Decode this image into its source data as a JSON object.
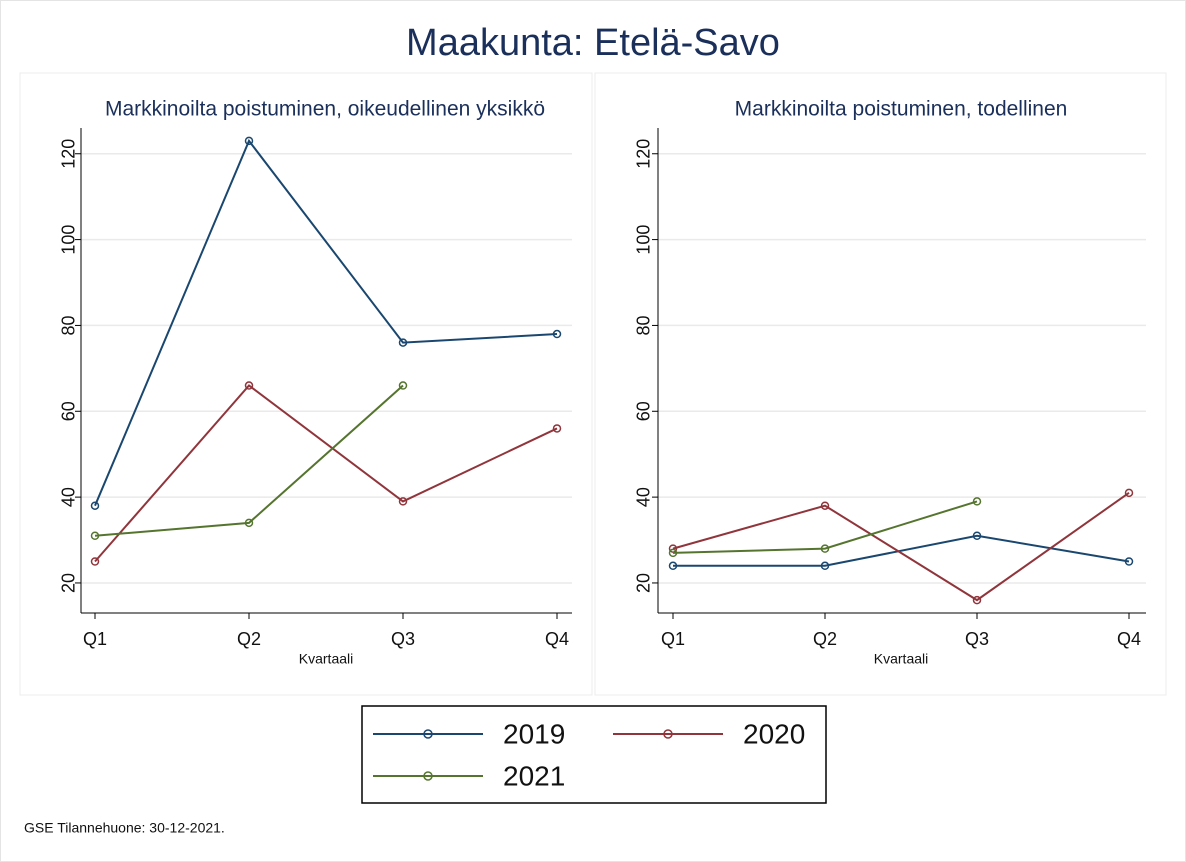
{
  "title": "Maakunta: Etelä-Savo",
  "note": "GSE Tilannehuone: 30-12-2021.",
  "chart_data": [
    {
      "type": "line",
      "title": "Markkinoilta poistuminen, oikeudellinen yksikkö",
      "xlabel": "Kvartaali",
      "categories": [
        "Q1",
        "Q2",
        "Q3",
        "Q4"
      ],
      "series": [
        {
          "name": "2019",
          "color": "#1a476f",
          "values": [
            38,
            123,
            76,
            78
          ]
        },
        {
          "name": "2020",
          "color": "#90353b",
          "values": [
            25,
            66,
            39,
            56
          ]
        },
        {
          "name": "2021",
          "color": "#55752f",
          "values": [
            31,
            34,
            66,
            null
          ]
        }
      ],
      "ylim": [
        13,
        126
      ],
      "yticks": [
        20,
        40,
        60,
        80,
        100,
        120
      ],
      "grid": true
    },
    {
      "type": "line",
      "title": "Markkinoilta poistuminen, todellinen",
      "xlabel": "Kvartaali",
      "categories": [
        "Q1",
        "Q2",
        "Q3",
        "Q4"
      ],
      "series": [
        {
          "name": "2019",
          "color": "#1a476f",
          "values": [
            24,
            24,
            31,
            25
          ]
        },
        {
          "name": "2020",
          "color": "#90353b",
          "values": [
            28,
            38,
            16,
            41
          ]
        },
        {
          "name": "2021",
          "color": "#55752f",
          "values": [
            27,
            28,
            39,
            null
          ]
        }
      ],
      "ylim": [
        13,
        126
      ],
      "yticks": [
        20,
        40,
        60,
        80,
        100,
        120
      ],
      "grid": true
    }
  ]
}
